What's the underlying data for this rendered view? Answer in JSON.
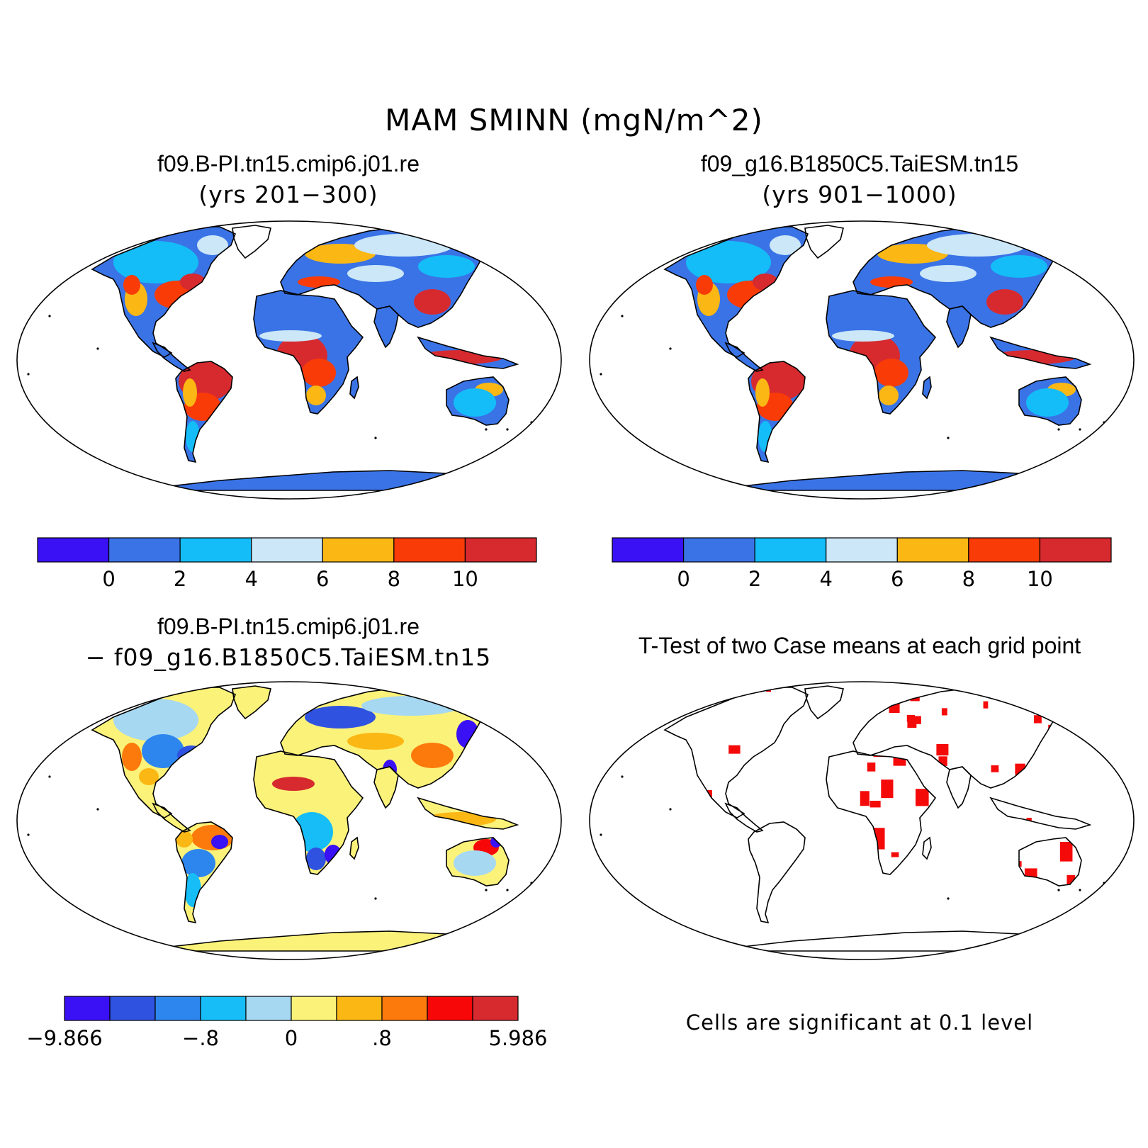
{
  "figure": {
    "title": "MAM SMINN (mgN/m^2)"
  },
  "panels": {
    "case1": {
      "title": "f09.B-PI.tn15.cmip6.j01.re",
      "subtitle": "(yrs 201−300)"
    },
    "case2": {
      "title": "f09_g16.B1850C5.TaiESM.tn15",
      "subtitle": "(yrs 901−1000)"
    },
    "diff": {
      "title": "f09.B-PI.tn15.cmip6.j01.re",
      "subtitle": "− f09_g16.B1850C5.TaiESM.tn15"
    },
    "ttest": {
      "title": "T-Test of two Case means at each grid point",
      "note": "Cells are significant at 0.1 level"
    }
  },
  "colorbars": {
    "abs": {
      "colors": [
        "#3a10f5",
        "#3a73e6",
        "#14bdf7",
        "#cbe7f8",
        "#fbb714",
        "#f93b07",
        "#d62a2f"
      ],
      "tick_labels": [
        "0",
        "2",
        "4",
        "6",
        "8",
        "10"
      ]
    },
    "diff": {
      "colors": [
        "#3a10f5",
        "#2f52e0",
        "#2d86ee",
        "#16bdf7",
        "#a6d8f2",
        "#fbf27a",
        "#fbb714",
        "#fb7a0b",
        "#f70707",
        "#d62a2f"
      ],
      "tick_labels": [
        "−9.866",
        "−.8",
        "0",
        ".8",
        "5.986"
      ]
    }
  },
  "colors": {
    "ocean": "#ffffff",
    "significant": "#f50a0a",
    "antarctica_abs": "#3a73e6",
    "antarctica_diff": "#fbf27a"
  }
}
